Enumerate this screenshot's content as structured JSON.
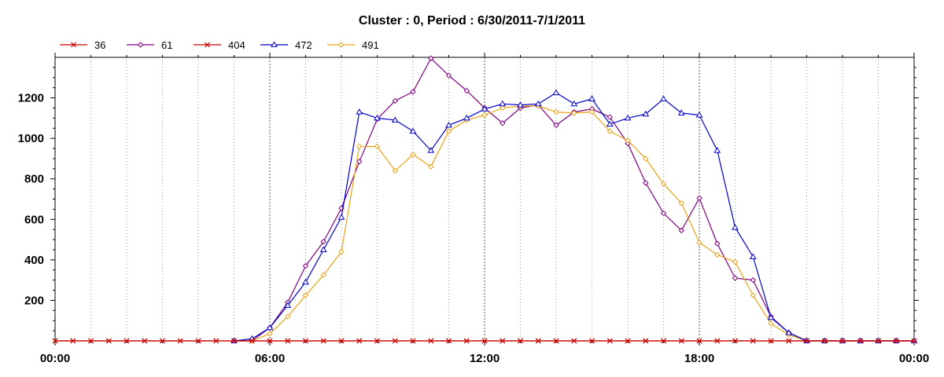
{
  "chart_data": {
    "type": "line",
    "title": "Cluster : 0, Period : 6/30/2011-7/1/2011",
    "xlabel": "",
    "ylabel": "",
    "x_tick_labels": [
      "00:00",
      "06:00",
      "12:00",
      "18:00",
      "00:00"
    ],
    "x_tick_hours": [
      0,
      6,
      12,
      18,
      24
    ],
    "y_ticks": [
      200,
      400,
      600,
      800,
      1000,
      1200
    ],
    "xlim_hours": [
      0,
      24
    ],
    "ylim": [
      0,
      1400
    ],
    "x_step_hours": 0.5,
    "grid": "vertical dotted, every hour",
    "legend_position": "top-left",
    "series": [
      {
        "name": "36",
        "color": "#cc0000",
        "marker": "x",
        "values": [
          0,
          0,
          0,
          0,
          0,
          0,
          0,
          0,
          0,
          0,
          0,
          0,
          0,
          0,
          0,
          0,
          0,
          0,
          0,
          0,
          0,
          0,
          0,
          0,
          0,
          0,
          0,
          0,
          0,
          0,
          0,
          0,
          0,
          0,
          0,
          0,
          0,
          0,
          0,
          0,
          0,
          0,
          0,
          0,
          0,
          0,
          0,
          0,
          0
        ]
      },
      {
        "name": "61",
        "color": "#800080",
        "marker": "diamond",
        "values": [
          null,
          null,
          null,
          null,
          null,
          null,
          null,
          null,
          null,
          null,
          0,
          0,
          65,
          190,
          370,
          490,
          655,
          885,
          1095,
          1185,
          1230,
          1395,
          1310,
          1235,
          1150,
          1075,
          1150,
          1165,
          1065,
          1130,
          1145,
          1105,
          975,
          780,
          630,
          545,
          705,
          480,
          310,
          300,
          120,
          40,
          0,
          0,
          0,
          0,
          0,
          0,
          0
        ]
      },
      {
        "name": "404",
        "color": "#cc0000",
        "marker": "x",
        "values": [
          0,
          0,
          0,
          0,
          0,
          0,
          0,
          0,
          0,
          0,
          0,
          0,
          0,
          0,
          0,
          0,
          0,
          0,
          0,
          0,
          0,
          0,
          0,
          0,
          0,
          0,
          0,
          0,
          0,
          0,
          0,
          0,
          0,
          0,
          0,
          0,
          0,
          0,
          0,
          0,
          0,
          0,
          0,
          0,
          0,
          0,
          0,
          0,
          0
        ]
      },
      {
        "name": "472",
        "color": "#0000cc",
        "marker": "triangle",
        "values": [
          null,
          null,
          null,
          null,
          null,
          null,
          null,
          null,
          null,
          null,
          0,
          10,
          65,
          175,
          290,
          450,
          610,
          1130,
          1100,
          1090,
          1035,
          940,
          1065,
          1100,
          1145,
          1170,
          1165,
          1170,
          1225,
          1170,
          1195,
          1070,
          1100,
          1120,
          1195,
          1125,
          1115,
          940,
          560,
          415,
          115,
          40,
          0,
          0,
          0,
          0,
          0,
          0,
          0
        ]
      },
      {
        "name": "491",
        "color": "#e8a317",
        "marker": "diamond",
        "values": [
          null,
          null,
          null,
          null,
          null,
          null,
          null,
          null,
          null,
          null,
          0,
          0,
          35,
          120,
          225,
          325,
          440,
          960,
          960,
          840,
          920,
          860,
          1035,
          1090,
          1115,
          1150,
          1160,
          1160,
          1130,
          1125,
          1130,
          1035,
          990,
          900,
          775,
          680,
          485,
          425,
          390,
          225,
          85,
          30,
          0,
          0,
          0,
          0,
          0,
          0,
          0
        ]
      }
    ]
  }
}
